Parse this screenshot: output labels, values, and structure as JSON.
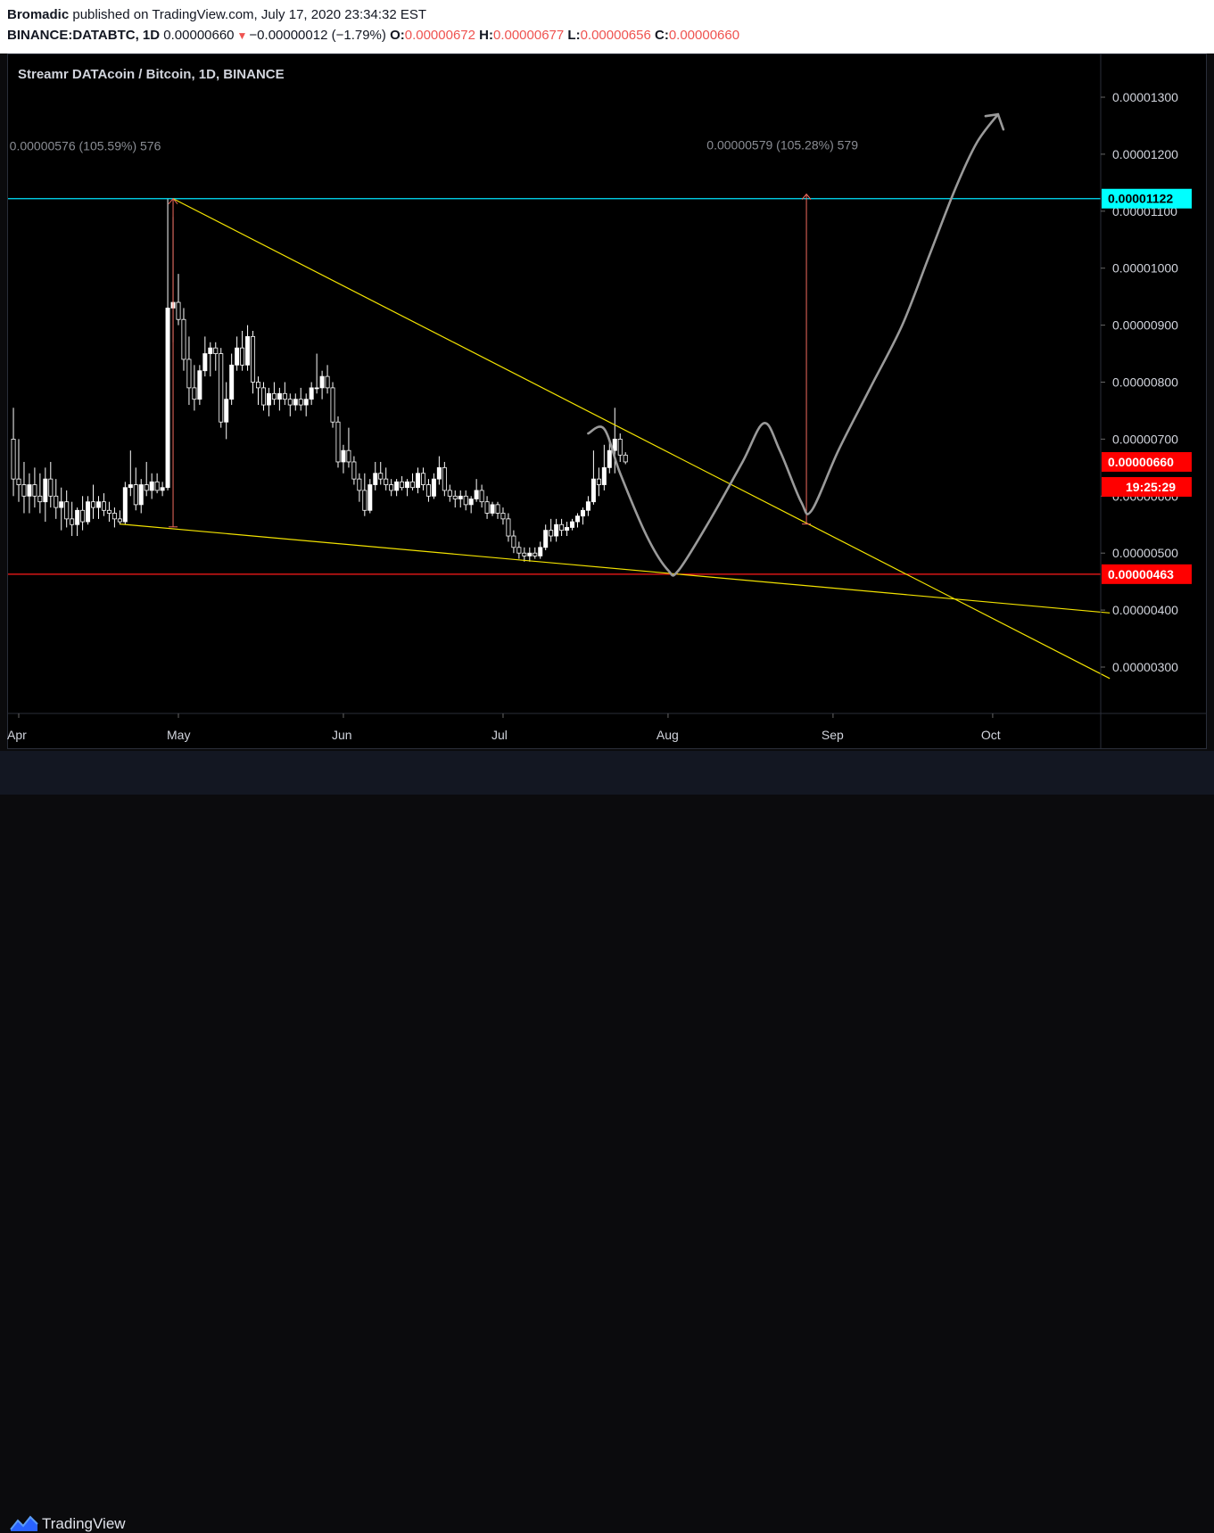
{
  "header": {
    "author": "Bromadic",
    "published_text": "published on TradingView.com, July 17, 2020 23:34:32 EST",
    "symbol": "BINANCE:DATABTC, 1D",
    "last_price": "0.00000660",
    "change": "−0.00000012 (−1.79%)",
    "o_label": "O:",
    "o_value": "0.00000672",
    "h_label": "H:",
    "h_value": "0.00000677",
    "l_label": "L:",
    "l_value": "0.00000656",
    "c_label": "C:",
    "c_value": "0.00000660"
  },
  "footer": {
    "brand": "TradingView"
  },
  "chart_data": {
    "type": "candlestick",
    "title": "Streamr DATAcoin / Bitcoin, 1D, BINANCE",
    "x_axis": {
      "ticks": [
        {
          "label": "Apr",
          "x": "2020-04-01"
        },
        {
          "label": "May",
          "x": "2020-05-01"
        },
        {
          "label": "Jun",
          "x": "2020-06-01"
        },
        {
          "label": "Jul",
          "x": "2020-07-01"
        },
        {
          "label": "Aug",
          "x": "2020-08-01"
        },
        {
          "label": "Sep",
          "x": "2020-09-01"
        },
        {
          "label": "Oct",
          "x": "2020-10-01"
        }
      ]
    },
    "y_axis": {
      "ticks": [
        "0.00000300",
        "0.00000400",
        "0.00000500",
        "0.00000600",
        "0.00000700",
        "0.00000800",
        "0.00000900",
        "0.00001000",
        "0.00001100",
        "0.00001200",
        "0.00001300"
      ],
      "ylim": [
        2.2e-06,
        1.38e-05
      ]
    },
    "price_labels": [
      {
        "value": "0.00001122",
        "price": 1.122e-05,
        "bg": "#00ffff",
        "fg": "#000000"
      },
      {
        "value": "0.00000660",
        "price": 6.6e-06,
        "bg": "#ff0000",
        "fg": "#ffffff"
      },
      {
        "value": "0.00000463",
        "price": 4.63e-06,
        "bg": "#ff0000",
        "fg": "#ffffff"
      }
    ],
    "countdown": "19:25:29",
    "measure_labels": [
      {
        "text": "0.00000576 (105.59%) 576",
        "date": "2020-04-11",
        "price": 1.215e-05
      },
      {
        "text": "0.00000579 (105.28%) 579",
        "date": "2020-08-20",
        "price": 1.216e-05
      }
    ],
    "horizontal_lines": [
      {
        "name": "resistance",
        "price": 1.122e-05,
        "color": "#00e5ff"
      },
      {
        "name": "support",
        "price": 4.63e-06,
        "color": "#ff1a1a"
      }
    ],
    "trend_lines": [
      {
        "name": "upper-trendline",
        "from": {
          "date": "2020-04-30",
          "price": 1.122e-05
        },
        "to": {
          "date": "2020-10-23",
          "price": 2.8e-06
        },
        "color": "#f2e200"
      },
      {
        "name": "lower-trendline",
        "from": {
          "date": "2020-04-20",
          "price": 5.51e-06
        },
        "to": {
          "date": "2020-10-23",
          "price": 3.95e-06
        },
        "color": "#f2e200"
      }
    ],
    "measure_arrows": [
      {
        "name": "measure-arrow-1",
        "date": "2020-04-30",
        "from": 5.46e-06,
        "to": 1.122e-05
      },
      {
        "name": "measure-arrow-2",
        "date": "2020-08-27",
        "from": 5.51e-06,
        "to": 1.13e-05
      }
    ],
    "projection_path": [
      [
        "2020-07-17",
        7.1e-06
      ],
      [
        "2020-07-20",
        7.18e-06
      ],
      [
        "2020-07-23",
        6.4e-06
      ],
      [
        "2020-07-28",
        5.3e-06
      ],
      [
        "2020-08-01",
        4.7e-06
      ],
      [
        "2020-08-03",
        4.7e-06
      ],
      [
        "2020-08-09",
        5.6e-06
      ],
      [
        "2020-08-15",
        6.6e-06
      ],
      [
        "2020-08-19",
        7.28e-06
      ],
      [
        "2020-08-22",
        6.8e-06
      ],
      [
        "2020-08-26",
        5.9e-06
      ],
      [
        "2020-08-28",
        5.75e-06
      ],
      [
        "2020-09-02",
        6.8e-06
      ],
      [
        "2020-09-08",
        7.9e-06
      ],
      [
        "2020-09-14",
        9e-06
      ],
      [
        "2020-09-19",
        1.02e-05
      ],
      [
        "2020-09-24",
        1.14e-05
      ],
      [
        "2020-09-28",
        1.22e-05
      ],
      [
        "2020-10-02",
        1.27e-05
      ]
    ],
    "series": [
      {
        "candles": [
          [
            "2020-03-31",
            7e-06,
            7.55e-06,
            6e-06,
            6.3e-06
          ],
          [
            "2020-04-01",
            6.3e-06,
            7e-06,
            5.9e-06,
            6.2e-06
          ],
          [
            "2020-04-02",
            6.2e-06,
            6.6e-06,
            5.7e-06,
            6e-06
          ],
          [
            "2020-04-03",
            6e-06,
            6.4e-06,
            5.7e-06,
            6.2e-06
          ],
          [
            "2020-04-04",
            6.2e-06,
            6.5e-06,
            5.8e-06,
            6e-06
          ],
          [
            "2020-04-05",
            6e-06,
            6.4e-06,
            5.7e-06,
            5.9e-06
          ],
          [
            "2020-04-06",
            5.9e-06,
            6.5e-06,
            5.55e-06,
            6.3e-06
          ],
          [
            "2020-04-07",
            6.3e-06,
            6.6e-06,
            5.8e-06,
            6e-06
          ],
          [
            "2020-04-08",
            6e-06,
            6.3e-06,
            5.6e-06,
            5.8e-06
          ],
          [
            "2020-04-09",
            5.8e-06,
            6.15e-06,
            5.4e-06,
            5.9e-06
          ],
          [
            "2020-04-10",
            5.9e-06,
            6.1e-06,
            5.45e-06,
            5.6e-06
          ],
          [
            "2020-04-11",
            5.6e-06,
            5.9e-06,
            5.3e-06,
            5.5e-06
          ],
          [
            "2020-04-12",
            5.5e-06,
            5.8e-06,
            5.3e-06,
            5.75e-06
          ],
          [
            "2020-04-13",
            5.75e-06,
            6e-06,
            5.4e-06,
            5.55e-06
          ],
          [
            "2020-04-14",
            5.55e-06,
            6e-06,
            5.5e-06,
            5.9e-06
          ],
          [
            "2020-04-15",
            5.9e-06,
            6.2e-06,
            5.6e-06,
            5.8e-06
          ],
          [
            "2020-04-16",
            5.8e-06,
            6e-06,
            5.6e-06,
            5.9e-06
          ],
          [
            "2020-04-17",
            5.9e-06,
            6.05e-06,
            5.65e-06,
            5.75e-06
          ],
          [
            "2020-04-18",
            5.75e-06,
            5.9e-06,
            5.55e-06,
            5.7e-06
          ],
          [
            "2020-04-19",
            5.7e-06,
            5.8e-06,
            5.45e-06,
            5.6e-06
          ],
          [
            "2020-04-20",
            5.6e-06,
            5.75e-06,
            5.5e-06,
            5.55e-06
          ],
          [
            "2020-04-21",
            5.55e-06,
            6.25e-06,
            5.5e-06,
            6.15e-06
          ],
          [
            "2020-04-22",
            6.15e-06,
            6.8e-06,
            6e-06,
            6.2e-06
          ],
          [
            "2020-04-23",
            6.2e-06,
            6.5e-06,
            5.75e-06,
            5.85e-06
          ],
          [
            "2020-04-24",
            5.85e-06,
            6.3e-06,
            5.7e-06,
            6.2e-06
          ],
          [
            "2020-04-25",
            6.2e-06,
            6.6e-06,
            6e-06,
            6.1e-06
          ],
          [
            "2020-04-26",
            6.1e-06,
            6.4e-06,
            5.95e-06,
            6.25e-06
          ],
          [
            "2020-04-27",
            6.25e-06,
            6.4e-06,
            6.05e-06,
            6.1e-06
          ],
          [
            "2020-04-28",
            6.1e-06,
            6.25e-06,
            6e-06,
            6.15e-06
          ],
          [
            "2020-04-29",
            6.15e-06,
            1.122e-05,
            6.1e-06,
            9.3e-06
          ],
          [
            "2020-04-30",
            9.3e-06,
            1.09e-05,
            8.7e-06,
            9.4e-06
          ],
          [
            "2020-05-01",
            9.4e-06,
            9.9e-06,
            9e-06,
            9.1e-06
          ],
          [
            "2020-05-02",
            9.1e-06,
            9.3e-06,
            8.2e-06,
            8.4e-06
          ],
          [
            "2020-05-03",
            8.4e-06,
            8.8e-06,
            7.6e-06,
            7.9e-06
          ],
          [
            "2020-05-04",
            7.9e-06,
            8.3e-06,
            7.5e-06,
            7.7e-06
          ],
          [
            "2020-05-05",
            7.7e-06,
            8.3e-06,
            7.6e-06,
            8.2e-06
          ],
          [
            "2020-05-06",
            8.2e-06,
            8.8e-06,
            8.1e-06,
            8.5e-06
          ],
          [
            "2020-05-07",
            8.5e-06,
            8.7e-06,
            8.1e-06,
            8.6e-06
          ],
          [
            "2020-05-08",
            8.6e-06,
            8.7e-06,
            8.2e-06,
            8.5e-06
          ],
          [
            "2020-05-09",
            8.5e-06,
            8.6e-06,
            7.2e-06,
            7.3e-06
          ],
          [
            "2020-05-10",
            7.3e-06,
            8e-06,
            7e-06,
            7.7e-06
          ],
          [
            "2020-05-11",
            7.7e-06,
            8.5e-06,
            7.6e-06,
            8.3e-06
          ],
          [
            "2020-05-12",
            8.3e-06,
            8.8e-06,
            8.2e-06,
            8.6e-06
          ],
          [
            "2020-05-13",
            8.6e-06,
            8.9e-06,
            8.2e-06,
            8.3e-06
          ],
          [
            "2020-05-14",
            8.3e-06,
            9e-06,
            8.2e-06,
            8.8e-06
          ],
          [
            "2020-05-15",
            8.8e-06,
            8.9e-06,
            7.8e-06,
            8e-06
          ],
          [
            "2020-05-16",
            8e-06,
            8.1e-06,
            7.6e-06,
            7.9e-06
          ],
          [
            "2020-05-17",
            7.9e-06,
            8e-06,
            7.5e-06,
            7.6e-06
          ],
          [
            "2020-05-18",
            7.6e-06,
            7.9e-06,
            7.4e-06,
            7.8e-06
          ],
          [
            "2020-05-19",
            7.8e-06,
            8e-06,
            7.6e-06,
            7.7e-06
          ],
          [
            "2020-05-20",
            7.7e-06,
            7.9e-06,
            7.5e-06,
            7.8e-06
          ],
          [
            "2020-05-21",
            7.8e-06,
            8e-06,
            7.6e-06,
            7.7e-06
          ],
          [
            "2020-05-22",
            7.7e-06,
            7.8e-06,
            7.4e-06,
            7.6e-06
          ],
          [
            "2020-05-23",
            7.6e-06,
            7.8e-06,
            7.5e-06,
            7.7e-06
          ],
          [
            "2020-05-24",
            7.7e-06,
            7.9e-06,
            7.5e-06,
            7.6e-06
          ],
          [
            "2020-05-25",
            7.6e-06,
            7.8e-06,
            7.4e-06,
            7.7e-06
          ],
          [
            "2020-05-26",
            7.7e-06,
            8e-06,
            7.6e-06,
            7.9e-06
          ],
          [
            "2020-05-27",
            7.9e-06,
            8.5e-06,
            7.8e-06,
            7.9e-06
          ],
          [
            "2020-05-28",
            7.9e-06,
            8.2e-06,
            7.7e-06,
            8.1e-06
          ],
          [
            "2020-05-29",
            8.1e-06,
            8.3e-06,
            7.8e-06,
            7.9e-06
          ],
          [
            "2020-05-30",
            7.9e-06,
            8e-06,
            7.2e-06,
            7.3e-06
          ],
          [
            "2020-05-31",
            7.3e-06,
            7.4e-06,
            6.5e-06,
            6.6e-06
          ],
          [
            "2020-06-01",
            6.6e-06,
            6.9e-06,
            6.4e-06,
            6.8e-06
          ],
          [
            "2020-06-02",
            6.8e-06,
            7.2e-06,
            6.5e-06,
            6.6e-06
          ],
          [
            "2020-06-03",
            6.6e-06,
            6.7e-06,
            6.2e-06,
            6.3e-06
          ],
          [
            "2020-06-04",
            6.3e-06,
            6.4e-06,
            5.9e-06,
            6.1e-06
          ],
          [
            "2020-06-05",
            6.1e-06,
            6.4e-06,
            5.65e-06,
            5.75e-06
          ],
          [
            "2020-06-06",
            5.75e-06,
            6.3e-06,
            5.7e-06,
            6.2e-06
          ],
          [
            "2020-06-07",
            6.2e-06,
            6.6e-06,
            6.1e-06,
            6.4e-06
          ],
          [
            "2020-06-08",
            6.4e-06,
            6.6e-06,
            6.2e-06,
            6.3e-06
          ],
          [
            "2020-06-09",
            6.3e-06,
            6.5e-06,
            6.1e-06,
            6.2e-06
          ],
          [
            "2020-06-10",
            6.2e-06,
            6.3e-06,
            6e-06,
            6.1e-06
          ],
          [
            "2020-06-11",
            6.1e-06,
            6.3e-06,
            6e-06,
            6.25e-06
          ],
          [
            "2020-06-12",
            6.25e-06,
            6.35e-06,
            6.1e-06,
            6.15e-06
          ],
          [
            "2020-06-13",
            6.15e-06,
            6.3e-06,
            6e-06,
            6.25e-06
          ],
          [
            "2020-06-14",
            6.25e-06,
            6.4e-06,
            6.1e-06,
            6.15e-06
          ],
          [
            "2020-06-15",
            6.15e-06,
            6.5e-06,
            6.05e-06,
            6.4e-06
          ],
          [
            "2020-06-16",
            6.4e-06,
            6.5e-06,
            6.1e-06,
            6.2e-06
          ],
          [
            "2020-06-17",
            6.2e-06,
            6.3e-06,
            5.9e-06,
            6e-06
          ],
          [
            "2020-06-18",
            6e-06,
            6.4e-06,
            5.95e-06,
            6.3e-06
          ],
          [
            "2020-06-19",
            6.3e-06,
            6.7e-06,
            6.2e-06,
            6.5e-06
          ],
          [
            "2020-06-20",
            6.5e-06,
            6.6e-06,
            6e-06,
            6.1e-06
          ],
          [
            "2020-06-21",
            6.1e-06,
            6.2e-06,
            5.9e-06,
            6e-06
          ],
          [
            "2020-06-22",
            6e-06,
            6.1e-06,
            5.8e-06,
            5.95e-06
          ],
          [
            "2020-06-23",
            5.95e-06,
            6.1e-06,
            5.8e-06,
            6e-06
          ],
          [
            "2020-06-24",
            6e-06,
            6.1e-06,
            5.75e-06,
            5.85e-06
          ],
          [
            "2020-06-25",
            5.85e-06,
            6e-06,
            5.7e-06,
            5.95e-06
          ],
          [
            "2020-06-26",
            5.95e-06,
            6.3e-06,
            5.9e-06,
            6.1e-06
          ],
          [
            "2020-06-27",
            6.1e-06,
            6.2e-06,
            5.8e-06,
            5.9e-06
          ],
          [
            "2020-06-28",
            5.9e-06,
            6e-06,
            5.6e-06,
            5.7e-06
          ],
          [
            "2020-06-29",
            5.7e-06,
            5.9e-06,
            5.65e-06,
            5.85e-06
          ],
          [
            "2020-06-30",
            5.85e-06,
            5.9e-06,
            5.6e-06,
            5.7e-06
          ],
          [
            "2020-07-01",
            5.7e-06,
            5.8e-06,
            5.5e-06,
            5.6e-06
          ],
          [
            "2020-07-02",
            5.6e-06,
            5.7e-06,
            5.2e-06,
            5.3e-06
          ],
          [
            "2020-07-03",
            5.3e-06,
            5.4e-06,
            5e-06,
            5.1e-06
          ],
          [
            "2020-07-04",
            5.1e-06,
            5.2e-06,
            4.9e-06,
            5e-06
          ],
          [
            "2020-07-05",
            5e-06,
            5.1e-06,
            4.85e-06,
            4.95e-06
          ],
          [
            "2020-07-06",
            4.95e-06,
            5.1e-06,
            4.85e-06,
            5e-06
          ],
          [
            "2020-07-07",
            5e-06,
            5.1e-06,
            4.9e-06,
            4.95e-06
          ],
          [
            "2020-07-08",
            4.95e-06,
            5.2e-06,
            4.9e-06,
            5.1e-06
          ],
          [
            "2020-07-09",
            5.1e-06,
            5.5e-06,
            5.05e-06,
            5.4e-06
          ],
          [
            "2020-07-10",
            5.4e-06,
            5.6e-06,
            5.2e-06,
            5.3e-06
          ],
          [
            "2020-07-11",
            5.3e-06,
            5.6e-06,
            5.2e-06,
            5.5e-06
          ],
          [
            "2020-07-12",
            5.5e-06,
            5.6e-06,
            5.3e-06,
            5.4e-06
          ],
          [
            "2020-07-13",
            5.4e-06,
            5.55e-06,
            5.3e-06,
            5.45e-06
          ],
          [
            "2020-07-14",
            5.45e-06,
            5.6e-06,
            5.4e-06,
            5.55e-06
          ],
          [
            "2020-07-15",
            5.55e-06,
            5.7e-06,
            5.45e-06,
            5.65e-06
          ],
          [
            "2020-07-16",
            5.65e-06,
            5.8e-06,
            5.5e-06,
            5.75e-06
          ],
          [
            "2020-07-17",
            5.75e-06,
            6e-06,
            5.65e-06,
            5.9e-06
          ],
          [
            "2020-07-18",
            5.9e-06,
            6.8e-06,
            5.85e-06,
            6.3e-06
          ],
          [
            "2020-07-19",
            6.3e-06,
            6.5e-06,
            6e-06,
            6.2e-06
          ],
          [
            "2020-07-20",
            6.2e-06,
            6.9e-06,
            6.1e-06,
            6.5e-06
          ],
          [
            "2020-07-21",
            6.5e-06,
            7e-06,
            6.4e-06,
            6.8e-06
          ],
          [
            "2020-07-22",
            6.8e-06,
            7.55e-06,
            6.4e-06,
            7e-06
          ],
          [
            "2020-07-23",
            7e-06,
            7.1e-06,
            6.6e-06,
            6.72e-06
          ],
          [
            "2020-07-24",
            6.72e-06,
            6.77e-06,
            6.56e-06,
            6.6e-06
          ]
        ]
      }
    ]
  }
}
